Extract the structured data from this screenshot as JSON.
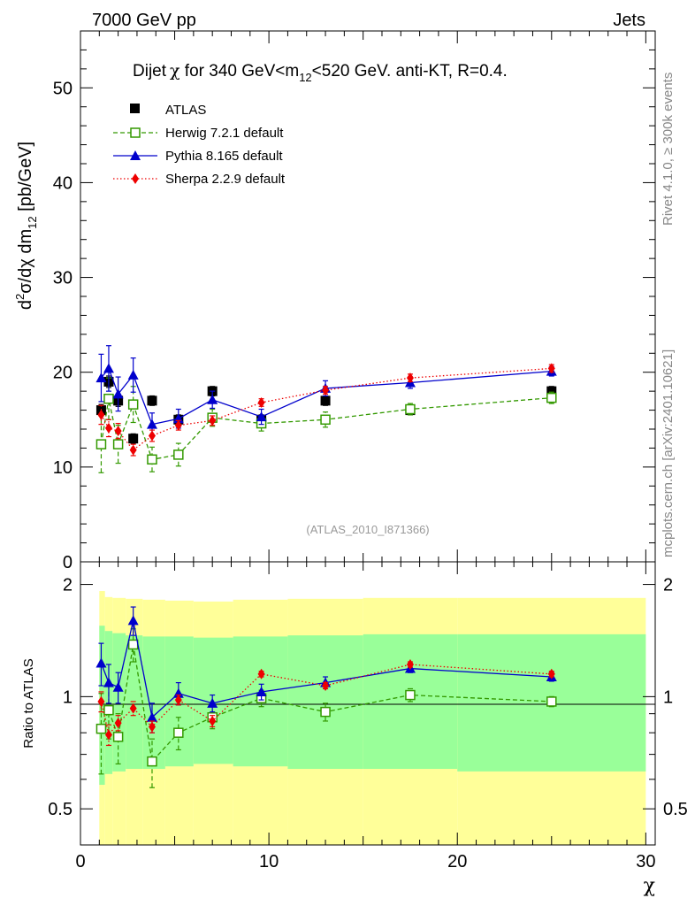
{
  "header": {
    "left": "7000 GeV pp",
    "right": "Jets"
  },
  "side_labels": {
    "rivet": "Rivet 4.1.0, ≥ 300k events",
    "mcplots": "mcplots.cern.ch [arXiv:2401.10621]"
  },
  "colors": {
    "data": "#000000",
    "herwig": "#339900",
    "pythia": "#0000cc",
    "sherpa": "#ee0000",
    "band_outer": "#ffff99",
    "band_inner": "#99ff99"
  },
  "chart_data": [
    {
      "type": "scatter",
      "title": "Dijet χ for 340 GeV<m12<520 GeV.  anti-KT, R=0.4.",
      "title_parts": {
        "pre": "Dijet",
        "chi": "χ",
        "mid": " for 340 GeV<m",
        "sub": "12",
        "post": "<520 GeV.  anti-KT, R=0.4."
      },
      "ylabel": "d²σ/dχ dm12 [pb/GeV]",
      "ylabel_parts": {
        "d": "d",
        "sup2": "2",
        "rest": "σ/dχ dm",
        "sub": "12",
        "unit": " [pb/GeV]"
      },
      "ylim": [
        0,
        56
      ],
      "xlim": [
        0,
        30.5
      ],
      "yticks": [
        "0",
        "10",
        "20",
        "30",
        "40",
        "50"
      ],
      "watermark": "(ATLAS_2010_I871366)",
      "x": [
        1.1,
        1.5,
        2.0,
        2.8,
        3.8,
        5.2,
        7.0,
        9.6,
        13.0,
        17.5,
        25.0
      ],
      "series": [
        {
          "name": "ATLAS",
          "values": [
            16.0,
            19.0,
            17.0,
            13.0,
            17.0,
            15.0,
            18.0,
            15.0,
            17.0,
            16.0,
            18.0
          ],
          "err": [
            0.6,
            0.6,
            0.6,
            0.5,
            0.5,
            0.5,
            0.5,
            0.5,
            0.5,
            0.5,
            0.5
          ]
        },
        {
          "name": "Herwig 7.2.1 default",
          "values": [
            12.4,
            17.2,
            12.4,
            16.6,
            10.8,
            11.3,
            15.2,
            14.6,
            15.0,
            16.1,
            17.3
          ],
          "err": [
            3.0,
            2.2,
            2.0,
            1.9,
            1.3,
            1.2,
            0.9,
            0.8,
            0.8,
            0.6,
            0.6
          ]
        },
        {
          "name": "Pythia 8.165 default",
          "values": [
            19.4,
            20.4,
            17.7,
            19.7,
            14.5,
            15.1,
            17.1,
            15.3,
            18.3,
            18.9,
            20.1
          ],
          "err": [
            2.5,
            2.4,
            1.8,
            1.8,
            1.2,
            1.0,
            0.9,
            0.8,
            0.8,
            0.6,
            0.5
          ]
        },
        {
          "name": "Sherpa 2.2.9 default",
          "values": [
            15.5,
            14.1,
            13.8,
            11.8,
            13.3,
            14.4,
            14.9,
            16.8,
            18.1,
            19.4,
            20.4
          ],
          "err": [
            1.0,
            0.9,
            0.8,
            0.6,
            0.6,
            0.5,
            0.5,
            0.4,
            0.4,
            0.4,
            0.4
          ]
        }
      ]
    },
    {
      "type": "scatter",
      "ylabel": "Ratio to ATLAS",
      "xlabel": "χ",
      "ylim": [
        0.4,
        2.3
      ],
      "yscale": "log",
      "xlim": [
        0,
        30.5
      ],
      "yticks": [
        "0.5",
        "1",
        "2"
      ],
      "xticks": [
        "0",
        "10",
        "20",
        "30"
      ],
      "band_edges": [
        1.0,
        1.3,
        1.7,
        2.4,
        3.3,
        4.5,
        6.0,
        8.1,
        11.0,
        15.0,
        20.0,
        30.0
      ],
      "band_inner": [
        [
          0.58,
          1.55
        ],
        [
          0.62,
          1.5
        ],
        [
          0.63,
          1.48
        ],
        [
          0.64,
          1.46
        ],
        [
          0.64,
          1.45
        ],
        [
          0.65,
          1.45
        ],
        [
          0.66,
          1.44
        ],
        [
          0.65,
          1.45
        ],
        [
          0.64,
          1.46
        ],
        [
          0.64,
          1.47
        ],
        [
          0.63,
          1.47
        ]
      ],
      "band_outer": [
        [
          0.4,
          1.92
        ],
        [
          0.4,
          1.85
        ],
        [
          0.4,
          1.84
        ],
        [
          0.4,
          1.83
        ],
        [
          0.4,
          1.82
        ],
        [
          0.4,
          1.81
        ],
        [
          0.4,
          1.8
        ],
        [
          0.4,
          1.82
        ],
        [
          0.4,
          1.83
        ],
        [
          0.4,
          1.84
        ],
        [
          0.4,
          1.84
        ]
      ],
      "x": [
        1.1,
        1.5,
        2.0,
        2.8,
        3.8,
        5.2,
        7.0,
        9.6,
        13.0,
        17.5,
        25.0
      ],
      "series": [
        {
          "name": "Herwig 7.2.1 default",
          "values": [
            0.82,
            0.92,
            0.78,
            1.38,
            0.67,
            0.8,
            0.88,
            0.99,
            0.91,
            1.01,
            0.97
          ],
          "err": [
            0.2,
            0.15,
            0.12,
            0.14,
            0.1,
            0.08,
            0.06,
            0.05,
            0.05,
            0.04,
            0.03
          ]
        },
        {
          "name": "Pythia 8.165 default",
          "values": [
            1.23,
            1.09,
            1.06,
            1.6,
            0.88,
            1.02,
            0.96,
            1.03,
            1.09,
            1.19,
            1.13
          ],
          "err": [
            0.16,
            0.13,
            0.1,
            0.14,
            0.08,
            0.07,
            0.05,
            0.05,
            0.04,
            0.03,
            0.03
          ]
        },
        {
          "name": "Sherpa 2.2.9 default",
          "values": [
            0.97,
            0.79,
            0.85,
            0.93,
            0.83,
            0.98,
            0.86,
            1.15,
            1.07,
            1.22,
            1.15
          ],
          "err": [
            0.06,
            0.05,
            0.04,
            0.04,
            0.03,
            0.03,
            0.03,
            0.02,
            0.02,
            0.02,
            0.02
          ]
        }
      ]
    }
  ]
}
